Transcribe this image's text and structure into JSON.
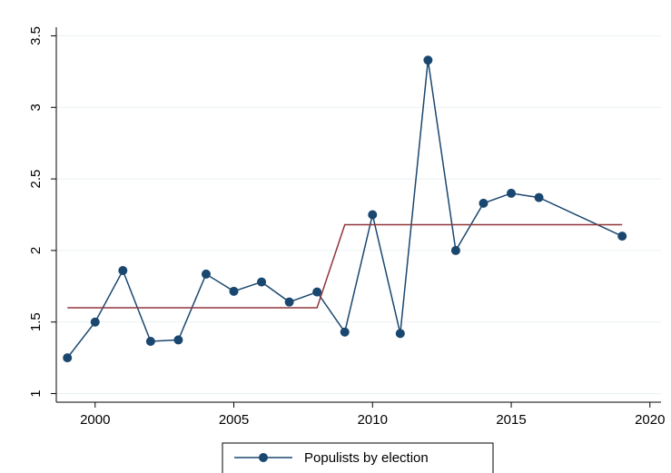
{
  "chart_data": {
    "type": "line",
    "series": [
      {
        "name": "Populists by election",
        "color": "#1a476f",
        "marker": true,
        "x": [
          1999,
          2000,
          2001,
          2002,
          2003,
          2004,
          2005,
          2006,
          2007,
          2008,
          2009,
          2010,
          2011,
          2012,
          2013,
          2014,
          2015,
          2016,
          2019
        ],
        "values": [
          1.25,
          1.5,
          1.86,
          1.365,
          1.375,
          1.835,
          1.715,
          1.78,
          1.64,
          1.71,
          1.43,
          2.25,
          1.42,
          3.33,
          2.0,
          2.33,
          2.4,
          2.37,
          2.1
        ]
      },
      {
        "color": "#90353b",
        "marker": false,
        "x": [
          1999,
          2008,
          2009,
          2019
        ],
        "values": [
          1.6,
          1.6,
          2.18,
          2.18
        ]
      }
    ],
    "xlim": [
      1998.6,
      2020.4
    ],
    "xticks": [
      2000,
      2005,
      2010,
      2015,
      2020
    ],
    "ylim": [
      0.94,
      3.56
    ],
    "yticks": [
      1,
      1.5,
      2,
      2.5,
      3,
      3.5
    ],
    "grid": true,
    "legend": "bottom"
  }
}
